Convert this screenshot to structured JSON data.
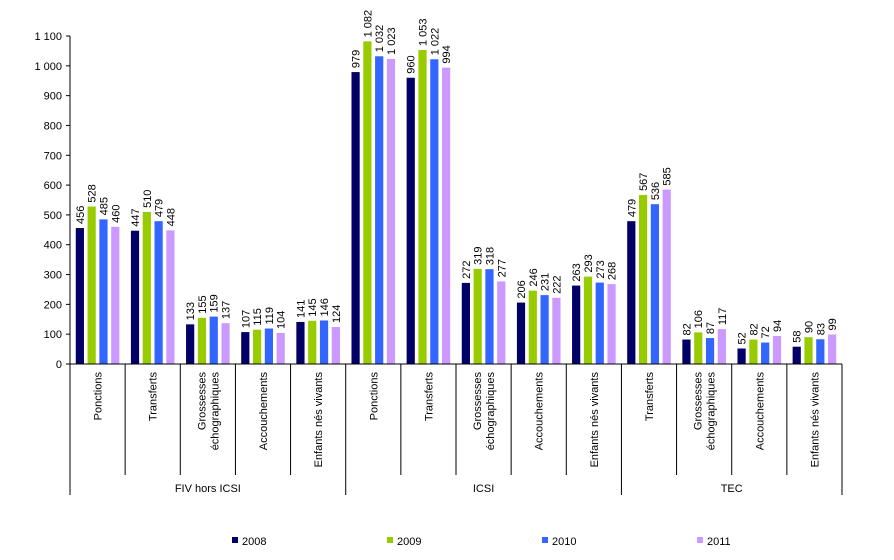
{
  "chart_data": {
    "type": "bar",
    "title": "",
    "xlabel": "",
    "ylabel": "",
    "ylim": [
      0,
      1100
    ],
    "yticks": [
      0,
      100,
      200,
      300,
      400,
      500,
      600,
      700,
      800,
      900,
      1000,
      1100
    ],
    "ytick_labels": [
      "0",
      "100",
      "200",
      "300",
      "400",
      "500",
      "600",
      "700",
      "800",
      "900",
      "1 000",
      "1 100"
    ],
    "grid": false,
    "legend_position": "bottom",
    "groups": [
      {
        "label": "FIV hors ICSI",
        "categories": [
          "Ponctions",
          "Transferts",
          "Grossesses échographiques",
          "Accouchements",
          "Enfants nés vivants"
        ]
      },
      {
        "label": "ICSI",
        "categories": [
          "Ponctions",
          "Transferts",
          "Grossesses échographiques",
          "Accouchements",
          "Enfants nés vivants"
        ]
      },
      {
        "label": "TEC",
        "categories": [
          "Transferts",
          "Grossesses échographiques",
          "Accouchements",
          "Enfants nés vivants"
        ]
      }
    ],
    "categories": [
      "Ponctions",
      "Transferts",
      "Grossesses échographiques",
      "Accouchements",
      "Enfants nés vivants",
      "Ponctions",
      "Transferts",
      "Grossesses échographiques",
      "Accouchements",
      "Enfants nés vivants",
      "Transferts",
      "Grossesses échographiques",
      "Accouchements",
      "Enfants nés vivants"
    ],
    "series": [
      {
        "name": "2008",
        "color": "#000066",
        "values": [
          456,
          447,
          133,
          107,
          141,
          979,
          960,
          272,
          206,
          263,
          479,
          82,
          52,
          58
        ],
        "labels": [
          "456",
          "447",
          "133",
          "107",
          "141",
          "979",
          "960",
          "272",
          "206",
          "263",
          "479",
          "82",
          "52",
          "58"
        ]
      },
      {
        "name": "2009",
        "color": "#99CC00",
        "values": [
          528,
          510,
          155,
          115,
          145,
          1082,
          1053,
          319,
          246,
          293,
          567,
          106,
          82,
          90
        ],
        "labels": [
          "528",
          "510",
          "155",
          "115",
          "145",
          "1 082",
          "1 053",
          "319",
          "246",
          "293",
          "567",
          "106",
          "82",
          "90"
        ]
      },
      {
        "name": "2010",
        "color": "#3366FF",
        "values": [
          485,
          479,
          159,
          119,
          146,
          1032,
          1022,
          318,
          231,
          273,
          536,
          87,
          72,
          83
        ],
        "labels": [
          "485",
          "479",
          "159",
          "119",
          "146",
          "1 032",
          "1 022",
          "318",
          "231",
          "273",
          "536",
          "87",
          "72",
          "83"
        ]
      },
      {
        "name": "2011",
        "color": "#CC99FF",
        "values": [
          460,
          448,
          137,
          104,
          124,
          1023,
          994,
          277,
          222,
          268,
          585,
          117,
          94,
          99
        ],
        "labels": [
          "460",
          "448",
          "137",
          "104",
          "124",
          "1 023",
          "994",
          "277",
          "222",
          "268",
          "585",
          "117",
          "94",
          "99"
        ]
      }
    ]
  }
}
